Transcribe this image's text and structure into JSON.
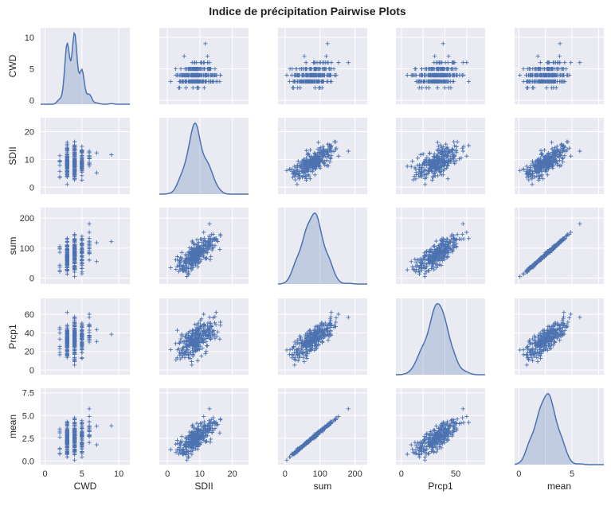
{
  "chart_data": {
    "type": "scatter",
    "title": "Indice de précipitation Pairwise Plots",
    "variables": [
      "CWD",
      "SDII",
      "sum",
      "Prcp1",
      "mean"
    ],
    "diagonal": "kde",
    "off_diagonal": "scatter",
    "marker": "+",
    "grid": true,
    "colors": {
      "series": "#4c72b0",
      "panel_bg": "#eaeaf2",
      "grid": "#ffffff"
    },
    "axes": {
      "CWD": {
        "lim": [
          -0.6,
          11.5
        ],
        "ticks": [
          0,
          5,
          10
        ],
        "tick_labels": [
          "0",
          "5",
          "10"
        ]
      },
      "SDII": {
        "lim": [
          -2.5,
          25
        ],
        "ticks": [
          0,
          10,
          20
        ],
        "tick_labels": [
          "0",
          "10",
          "20"
        ]
      },
      "sum": {
        "lim": [
          -20,
          235
        ],
        "ticks": [
          0,
          100,
          200
        ],
        "tick_labels": [
          "0",
          "100",
          "200"
        ]
      },
      "Prcp1": {
        "lim": [
          -5,
          77
        ],
        "ticks": [
          0,
          20,
          40,
          60
        ],
        "tick_labels": [
          "0",
          "20",
          "40",
          "60"
        ]
      },
      "mean": {
        "lim": [
          -0.4,
          8.0
        ],
        "ticks": [
          0.0,
          2.5,
          5.0,
          7.5
        ],
        "tick_labels": [
          "0.0",
          "2.5",
          "5.0",
          "7.5"
        ]
      }
    },
    "x_tick_labels": {
      "CWD": [
        "0",
        "5",
        "10"
      ],
      "SDII": [
        "0",
        "10",
        "20"
      ],
      "sum": [
        "0",
        "100",
        "200"
      ],
      "Prcp1": [
        "0",
        "50"
      ],
      "mean": [
        "0",
        "5"
      ]
    },
    "approx_distribution": {
      "CWD": {
        "center": 3.0,
        "spread": 1.3,
        "min": 1,
        "max": 10
      },
      "SDII": {
        "center": 8.5,
        "spread": 3.0,
        "min": 1,
        "max": 22
      },
      "sum": {
        "center": 90,
        "spread": 35,
        "min": 5,
        "max": 215
      },
      "Prcp1": {
        "center": 35,
        "spread": 10,
        "min": 3,
        "max": 70
      },
      "mean": {
        "center": 2.6,
        "spread": 1.1,
        "min": 0.1,
        "max": 7.0
      }
    },
    "approx_n_points": 300
  }
}
